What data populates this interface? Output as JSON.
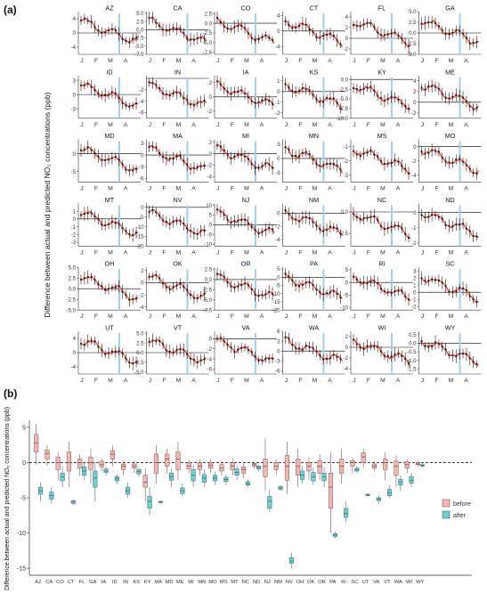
{
  "panel_labels": {
    "a": "(a)",
    "b": "(b)"
  },
  "colors": {
    "before_fill": "#F4B6B2",
    "before_stroke": "#7a5553",
    "after_fill": "#6FCFCF",
    "after_stroke": "#3f6e6e",
    "series_line": "#E8534C",
    "series_point": "#3a0d0d",
    "event_line": "#9ED3E6",
    "zero_line": "#000000",
    "axis": "#333333"
  },
  "chart_data": [
    {
      "type": "line",
      "panel": "(a)",
      "ylabel": "Difference between actual and predicted NO₂ concentrations (ppb)",
      "x_ticks": [
        "J",
        "F",
        "M",
        "A"
      ],
      "event_marker_position": "late March (vertical light-blue line)",
      "states": [
        {
          "name": "AZ",
          "y_ticks": [
            "4",
            "0",
            "-4"
          ],
          "ylim": [
            -6,
            6
          ]
        },
        {
          "name": "CA",
          "y_ticks": [
            "5.0",
            "2.5",
            "0.0",
            "-2.5",
            "-5.0",
            "-7.5"
          ],
          "ylim": [
            -7.5,
            5.5
          ]
        },
        {
          "name": "CO",
          "y_ticks": [
            "2.5",
            "0.0",
            "-2.5",
            "-5.0",
            "-7.5"
          ],
          "ylim": [
            -8,
            3
          ]
        },
        {
          "name": "CT",
          "y_ticks": [
            "4",
            "0",
            "-4"
          ],
          "ylim": [
            -6,
            5
          ]
        },
        {
          "name": "FL",
          "y_ticks": [
            "4",
            "2",
            "0",
            "-2"
          ],
          "ylim": [
            -3,
            5
          ]
        },
        {
          "name": "GA",
          "y_ticks": [
            "5.0",
            "2.5",
            "0.0",
            "-2.5",
            "-5.0"
          ],
          "ylim": [
            -5,
            5
          ]
        },
        {
          "name": "ID",
          "y_ticks": [
            "3",
            "0",
            "-3"
          ],
          "ylim": [
            -5,
            4
          ]
        },
        {
          "name": "IN",
          "y_ticks": [
            "-2",
            "-4",
            "-6"
          ],
          "ylim": [
            -7,
            0.5
          ]
        },
        {
          "name": "IA",
          "y_ticks": [
            "2",
            "0",
            "-2"
          ],
          "ylim": [
            -3,
            3
          ]
        },
        {
          "name": "KS",
          "y_ticks": [
            "1",
            "0",
            "-1",
            "-2"
          ],
          "ylim": [
            -2.5,
            1.5
          ]
        },
        {
          "name": "KY",
          "y_ticks": [
            "0.0",
            "-2.5",
            "-5.0",
            "-7.5",
            "-10.0"
          ],
          "ylim": [
            -10,
            1
          ]
        },
        {
          "name": "ME",
          "y_ticks": [
            "4",
            "2",
            "0",
            "-2"
          ],
          "ylim": [
            -3,
            5
          ]
        },
        {
          "name": "MD",
          "y_ticks": [
            "0",
            "-5"
          ],
          "ylim": [
            -8,
            4
          ]
        },
        {
          "name": "MA",
          "y_ticks": [
            "3",
            "0",
            "-3",
            "-6"
          ],
          "ylim": [
            -7,
            4
          ]
        },
        {
          "name": "MI",
          "y_ticks": [
            "2",
            "0",
            "-2",
            "-4"
          ],
          "ylim": [
            -5,
            2.5
          ]
        },
        {
          "name": "MN",
          "y_ticks": [
            "3",
            "0",
            "-3"
          ],
          "ylim": [
            -5,
            4
          ]
        },
        {
          "name": "MS",
          "y_ticks": [
            "-1",
            "-2",
            "-3"
          ],
          "ylim": [
            -3.5,
            -0.5
          ]
        },
        {
          "name": "MO",
          "y_ticks": [
            "0",
            "-2",
            "-4"
          ],
          "ylim": [
            -5,
            1
          ]
        },
        {
          "name": "MT",
          "y_ticks": [
            "1",
            "0",
            "-1",
            "-2",
            "-3"
          ],
          "ylim": [
            -3.5,
            2
          ]
        },
        {
          "name": "NV",
          "y_ticks": [
            "0",
            "-5",
            "-10",
            "-15",
            "-20"
          ],
          "ylim": [
            -20,
            2
          ]
        },
        {
          "name": "NJ",
          "y_ticks": [
            "10",
            "5",
            "0",
            "-5",
            "-10"
          ],
          "ylim": [
            -11,
            11
          ]
        },
        {
          "name": "NM",
          "y_ticks": [
            "0",
            "-2",
            "-4"
          ],
          "ylim": [
            -5,
            1.5
          ]
        },
        {
          "name": "NC",
          "y_ticks": [
            "0.0",
            "-2.5"
          ],
          "ylim": [
            -4,
            1
          ]
        },
        {
          "name": "ND",
          "y_ticks": [
            "0",
            "-1",
            "-2"
          ],
          "ylim": [
            -2.2,
            0.6
          ]
        },
        {
          "name": "OH",
          "y_ticks": [
            "5.0",
            "2.5",
            "0.0",
            "-2.5",
            "-5.0"
          ],
          "ylim": [
            -5,
            5
          ]
        },
        {
          "name": "OK",
          "y_ticks": [
            "2",
            "0",
            "-2",
            "-4"
          ],
          "ylim": [
            -4.5,
            2.5
          ]
        },
        {
          "name": "OR",
          "y_ticks": [
            "2.5",
            "0.0",
            "-2.5",
            "-5.0",
            "-7.5"
          ],
          "ylim": [
            -7.5,
            3
          ]
        },
        {
          "name": "PA",
          "y_ticks": [
            "5",
            "0",
            "-5",
            "-10",
            "-15",
            "-20"
          ],
          "ylim": [
            -20,
            6
          ]
        },
        {
          "name": "RI",
          "y_ticks": [
            "5",
            "0",
            "-5",
            "-10"
          ],
          "ylim": [
            -11,
            6
          ]
        },
        {
          "name": "SC",
          "y_ticks": [
            "3",
            "2",
            "1",
            "0",
            "-1",
            "-2"
          ],
          "ylim": [
            -2.5,
            3.5
          ]
        },
        {
          "name": "UT",
          "y_ticks": [
            "4",
            "0",
            "-4"
          ],
          "ylim": [
            -6,
            6
          ]
        },
        {
          "name": "VT",
          "y_ticks": [
            "5.0",
            "2.5",
            "0.0",
            "-2.5",
            "-5.0"
          ],
          "ylim": [
            -5.5,
            5.5
          ]
        },
        {
          "name": "VA",
          "y_ticks": [
            "0",
            "-2",
            "-4",
            "-6"
          ],
          "ylim": [
            -7,
            1.5
          ]
        },
        {
          "name": "WA",
          "y_ticks": [
            "6",
            "3",
            "0",
            "-3",
            "-6"
          ],
          "ylim": [
            -7,
            6
          ]
        },
        {
          "name": "WI",
          "y_ticks": [
            "2",
            "0",
            "-2",
            "-4"
          ],
          "ylim": [
            -5,
            3
          ]
        },
        {
          "name": "WY",
          "y_ticks": [
            "0.5",
            "0.0",
            "-0.5",
            "-1.0",
            "-1.5"
          ],
          "ylim": [
            -1.8,
            0.7
          ]
        }
      ]
    },
    {
      "type": "box",
      "panel": "(b)",
      "ylabel": "Difference between actual and predicted NO₂ concentrations (ppb)",
      "ylim": [
        -16,
        6
      ],
      "y_ticks": [
        5,
        0,
        -5,
        -10,
        -15
      ],
      "reference_line": 0,
      "legend": {
        "position": "right",
        "entries": [
          "before",
          "after"
        ]
      },
      "categories": [
        "AZ",
        "CA",
        "CO",
        "CT",
        "FL",
        "GA",
        "IA",
        "ID",
        "IN",
        "KS",
        "KY",
        "MA",
        "MD",
        "ME",
        "MI",
        "MN",
        "MO",
        "MS",
        "MT",
        "NC",
        "ND",
        "NJ",
        "NM",
        "NV",
        "OH",
        "OK",
        "OR",
        "PA",
        "RI",
        "SC",
        "UT",
        "VA",
        "VT",
        "WA",
        "WI",
        "WY"
      ],
      "series": [
        {
          "name": "before",
          "boxes": [
            [
              -0.3,
              1.5,
              2.8,
              4.0,
              5.5
            ],
            [
              -0.5,
              0.5,
              1.3,
              1.8,
              2.5
            ],
            [
              -2.5,
              -1.0,
              0.0,
              0.8,
              1.5
            ],
            [
              -3.5,
              -1.2,
              0.0,
              1.5,
              3.0
            ],
            [
              -1.8,
              -0.8,
              0.0,
              0.5,
              1.2
            ],
            [
              -3.0,
              -1.0,
              0.0,
              0.8,
              2.0
            ],
            [
              -1.2,
              -0.6,
              -0.3,
              0.2,
              0.6
            ],
            [
              -0.5,
              0.5,
              1.2,
              1.7,
              2.4
            ],
            [
              -1.8,
              -1.0,
              -0.5,
              -0.2,
              0.3
            ],
            [
              -1.5,
              -0.8,
              -0.5,
              -0.2,
              0.3
            ],
            [
              -5.5,
              -3.5,
              -2.8,
              -1.8,
              -0.8
            ],
            [
              -3.0,
              -1.5,
              0.0,
              1.2,
              2.5
            ],
            [
              -1.5,
              -0.5,
              0.5,
              1.2,
              2.0
            ],
            [
              -2.5,
              -1.0,
              0.5,
              1.5,
              3.0
            ],
            [
              -1.5,
              -0.9,
              -0.5,
              0.0,
              0.4
            ],
            [
              -1.8,
              -1.0,
              -0.5,
              0.0,
              0.4
            ],
            [
              -1.5,
              -0.8,
              -0.4,
              0.0,
              0.5
            ],
            [
              -1.8,
              -1.2,
              -0.8,
              -0.3,
              0.2
            ],
            [
              -1.8,
              -1.0,
              -0.5,
              0.0,
              0.6
            ],
            [
              -2.2,
              -1.5,
              -1.0,
              -0.6,
              -0.2
            ],
            [
              -0.8,
              -0.5,
              -0.3,
              -0.1,
              0.1
            ],
            [
              -4.0,
              -2.0,
              -0.5,
              0.5,
              3.5
            ],
            [
              -1.8,
              -1.0,
              -0.5,
              0.0,
              0.5
            ],
            [
              -4.5,
              -2.5,
              -0.5,
              1.0,
              3.0
            ],
            [
              -3.5,
              -1.8,
              -0.5,
              0.5,
              2.0
            ],
            [
              -2.5,
              -1.2,
              -0.5,
              0.0,
              0.8
            ],
            [
              -2.5,
              -1.5,
              -0.5,
              0.3,
              1.2
            ],
            [
              -10.0,
              -6.5,
              -3.5,
              -1.5,
              1.5
            ],
            [
              -3.0,
              -1.5,
              -0.5,
              0.5,
              2.0
            ],
            [
              -1.5,
              -0.5,
              0.0,
              0.3,
              0.7
            ],
            [
              -0.8,
              0.0,
              0.8,
              1.4,
              2.0
            ],
            [
              -1.2,
              -0.8,
              -0.5,
              -0.2,
              0.2
            ],
            [
              -2.5,
              -1.0,
              0.0,
              0.5,
              1.5
            ],
            [
              -3.5,
              -1.8,
              -0.5,
              0.2,
              1.0
            ],
            [
              -1.5,
              -0.8,
              -0.3,
              0.1,
              0.5
            ],
            [
              -0.6,
              -0.3,
              -0.2,
              0.0,
              0.2
            ]
          ]
        },
        {
          "name": "after",
          "boxes": [
            [
              -5.5,
              -4.5,
              -4.0,
              -3.5,
              -2.8
            ],
            [
              -5.8,
              -5.2,
              -4.7,
              -4.2,
              -3.5
            ],
            [
              -3.5,
              -2.6,
              -2.0,
              -1.5,
              -0.5
            ],
            [
              -6.0,
              -5.8,
              -5.6,
              -5.4,
              -5.2
            ],
            [
              -2.5,
              -1.8,
              -1.2,
              -0.6,
              0.0
            ],
            [
              -5.5,
              -3.5,
              -2.2,
              -1.2,
              0.0
            ],
            [
              -1.8,
              -1.4,
              -1.2,
              -0.9,
              -0.6
            ],
            [
              -3.0,
              -2.6,
              -2.3,
              -2.0,
              -1.7
            ],
            [
              -5.0,
              -4.5,
              -4.0,
              -3.5,
              -2.8
            ],
            [
              -2.0,
              -1.6,
              -1.3,
              -1.0,
              -0.6
            ],
            [
              -7.5,
              -6.5,
              -5.5,
              -4.8,
              -3.5
            ],
            [
              -5.8,
              -5.7,
              -5.6,
              -5.5,
              -5.4
            ],
            [
              -3.5,
              -2.5,
              -2.0,
              -1.5,
              -0.8
            ],
            [
              -4.8,
              -4.4,
              -4.0,
              -3.6,
              -3.0
            ],
            [
              -3.5,
              -2.6,
              -1.8,
              -1.0,
              -0.3
            ],
            [
              -3.5,
              -2.8,
              -2.2,
              -1.7,
              -1.0
            ],
            [
              -3.2,
              -2.6,
              -2.2,
              -1.8,
              -1.3
            ],
            [
              -3.2,
              -2.7,
              -2.4,
              -2.1,
              -1.7
            ],
            [
              -2.5,
              -1.8,
              -1.4,
              -0.9,
              -0.4
            ],
            [
              -3.5,
              -3.2,
              -3.0,
              -2.7,
              -2.4
            ],
            [
              -1.2,
              -0.9,
              -0.7,
              -0.5,
              -0.3
            ],
            [
              -7.0,
              -6.5,
              -5.5,
              -4.8,
              -3.8
            ],
            [
              -4.0,
              -3.8,
              -3.6,
              -3.4,
              -3.2
            ],
            [
              -15.0,
              -14.3,
              -14.0,
              -13.5,
              -12.8
            ],
            [
              -3.0,
              -2.4,
              -1.8,
              -1.2,
              -0.5
            ],
            [
              -3.2,
              -2.6,
              -2.0,
              -1.4,
              -0.7
            ],
            [
              -3.5,
              -2.6,
              -2.0,
              -1.5,
              -0.7
            ],
            [
              -10.8,
              -10.5,
              -10.3,
              -10.1,
              -9.8
            ],
            [
              -8.5,
              -7.8,
              -7.2,
              -6.5,
              -5.5
            ],
            [
              -1.5,
              -1.2,
              -1.0,
              -0.8,
              -0.5
            ],
            [
              -4.8,
              -4.7,
              -4.6,
              -4.5,
              -4.3
            ],
            [
              -5.8,
              -5.4,
              -5.2,
              -5.0,
              -4.7
            ],
            [
              -5.0,
              -4.7,
              -4.3,
              -3.8,
              -3.2
            ],
            [
              -4.0,
              -3.2,
              -2.8,
              -2.4,
              -1.8
            ],
            [
              -3.5,
              -2.9,
              -2.5,
              -2.0,
              -1.5
            ],
            [
              -0.7,
              -0.5,
              -0.4,
              -0.3,
              -0.1
            ]
          ]
        }
      ]
    }
  ]
}
